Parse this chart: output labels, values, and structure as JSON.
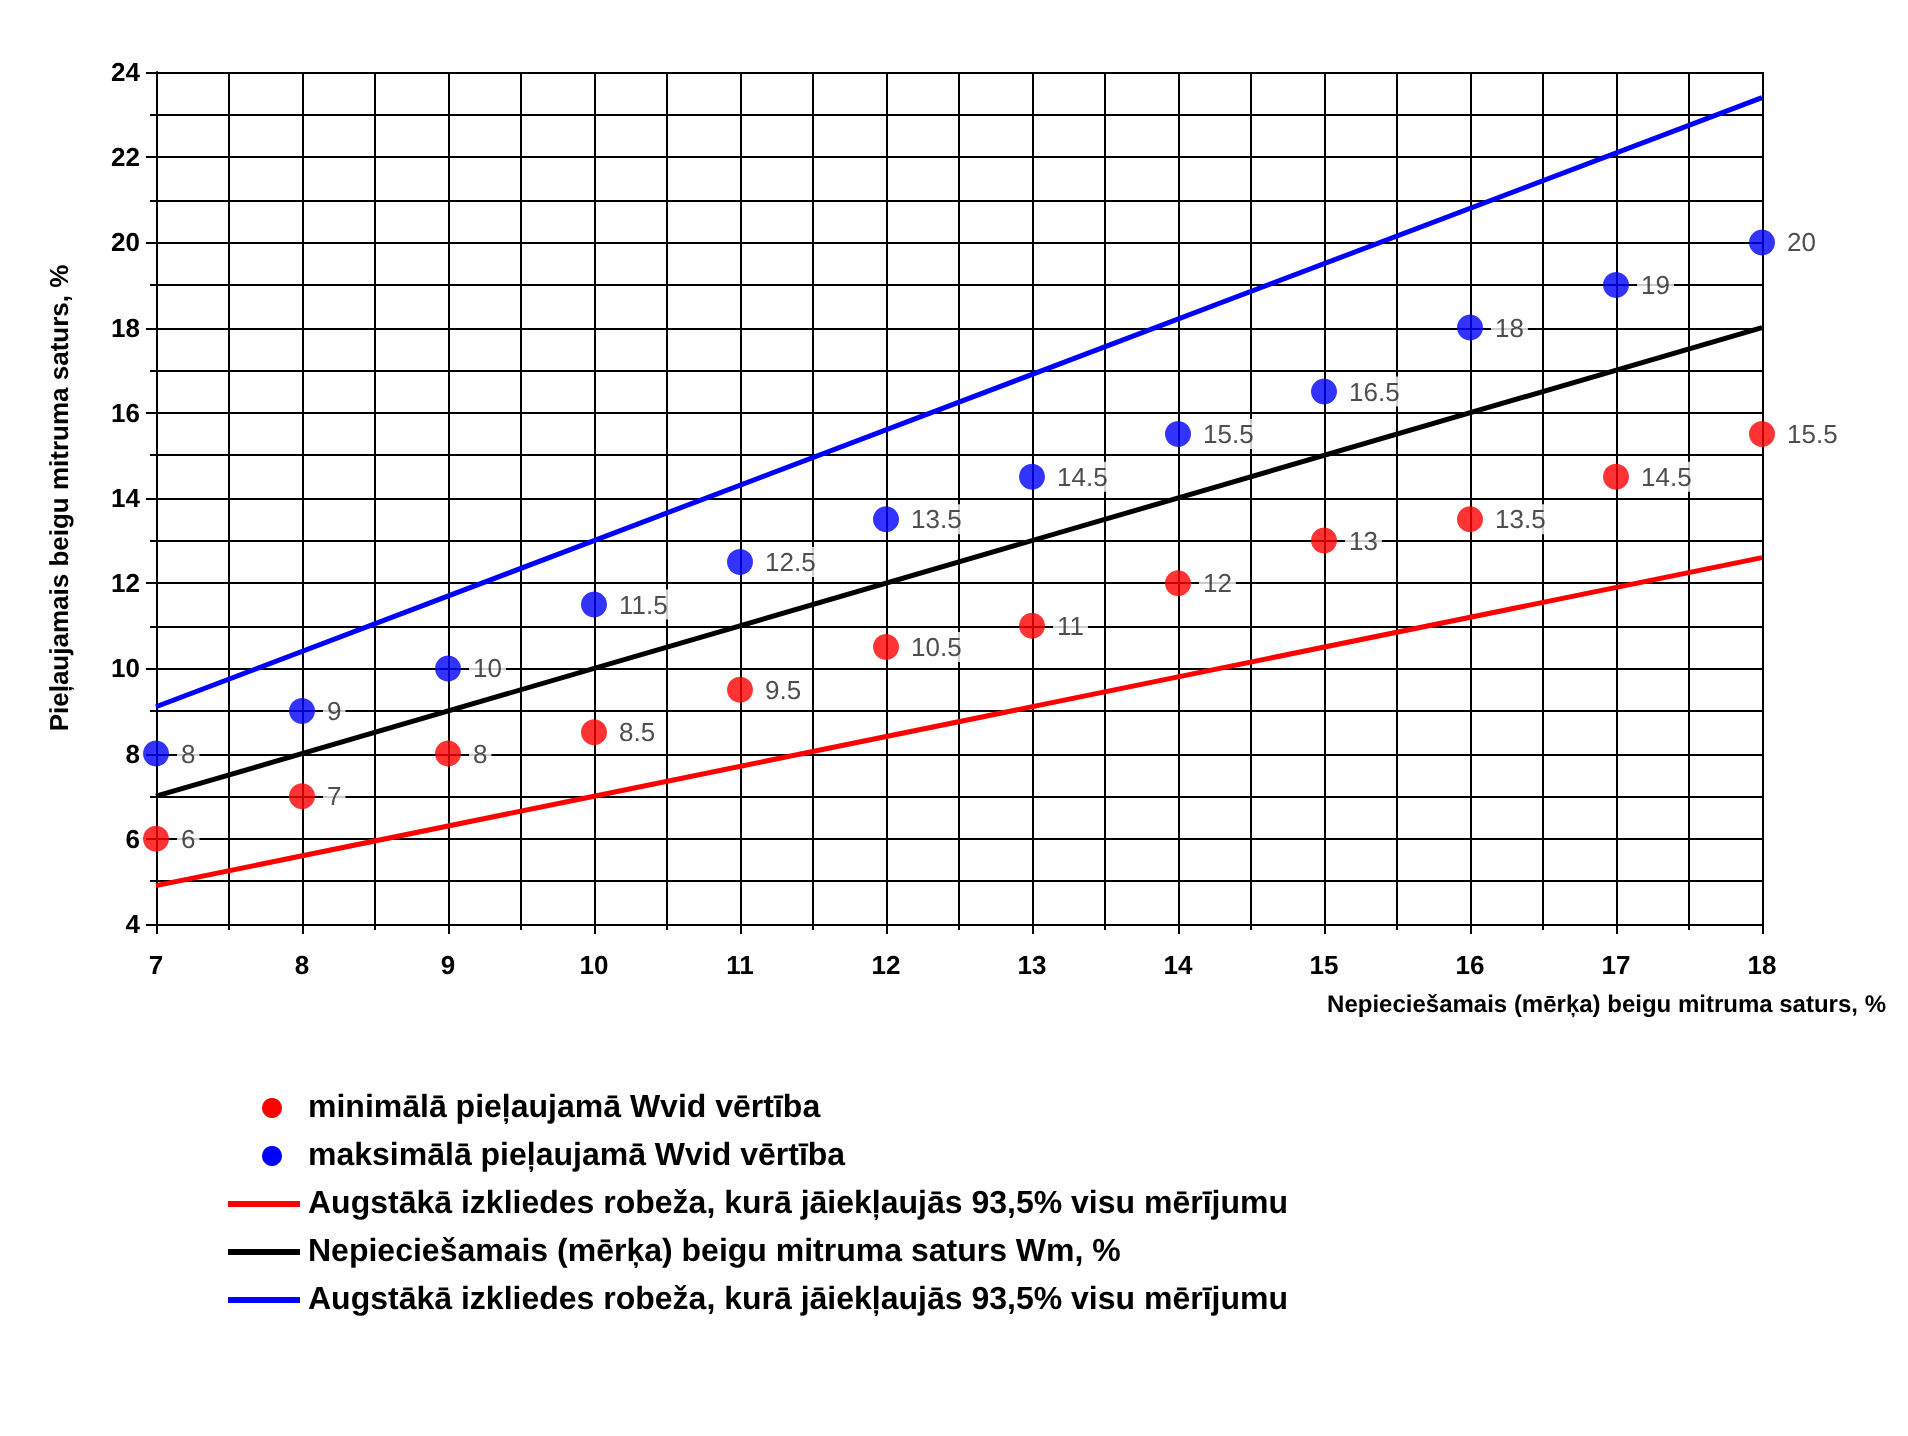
{
  "chart_data": {
    "type": "scatter",
    "xlabel": "Nepieciešamais (mērķa) beigu mitruma saturs, %",
    "ylabel": "Pieļaujamais beigu mitruma saturs, %",
    "xlim": [
      7,
      18
    ],
    "xticks": [
      7,
      8,
      9,
      10,
      11,
      12,
      13,
      14,
      15,
      16,
      17,
      18
    ],
    "ylim": [
      4,
      24
    ],
    "yticks": [
      4,
      6,
      8,
      10,
      12,
      14,
      16,
      18,
      20,
      22,
      24
    ],
    "grid": true,
    "legend": "bottom",
    "series": [
      {
        "name": "minimālā pieļaujamā Wvid vērtība",
        "color": "#ff0000",
        "marker": "circle",
        "data_labels": true,
        "x": [
          7,
          8,
          9,
          10,
          11,
          12,
          13,
          14,
          15,
          16,
          17,
          18
        ],
        "values": [
          6,
          7,
          8,
          8.5,
          9.5,
          10.5,
          11,
          12,
          13,
          13.5,
          14.5,
          15.5
        ]
      },
      {
        "name": "maksimālā pieļaujamā Wvid vērtība",
        "color": "#0000ff",
        "marker": "circle",
        "data_labels": true,
        "x": [
          7,
          8,
          9,
          10,
          11,
          12,
          13,
          14,
          15,
          16,
          17,
          18
        ],
        "values": [
          8,
          9,
          10,
          11.5,
          12.5,
          13.5,
          14.5,
          15.5,
          16.5,
          18,
          19,
          20
        ]
      },
      {
        "type": "line",
        "name": "Augstākā izkliedes robeža, kurā jāiekļaujās 93,5% visu mērījumu",
        "color": "#ff0000",
        "marker": "none",
        "x": [
          7,
          10,
          14,
          18
        ],
        "values": [
          4.9,
          7.0,
          9.8,
          12.6
        ]
      },
      {
        "type": "line",
        "name": "Nepieciešamais (mērķa) beigu mitruma saturs Wm, %",
        "color": "#000000",
        "marker": "none",
        "x": [
          7,
          18
        ],
        "values": [
          7,
          18
        ]
      },
      {
        "type": "line",
        "name": "Augstākā izkliedes robeža, kurā jāiekļaujās 93,5% visu mērījumu",
        "color": "#0000ff",
        "marker": "none",
        "x": [
          7,
          10,
          18
        ],
        "values": [
          9.1,
          13.0,
          23.4
        ]
      }
    ]
  }
}
